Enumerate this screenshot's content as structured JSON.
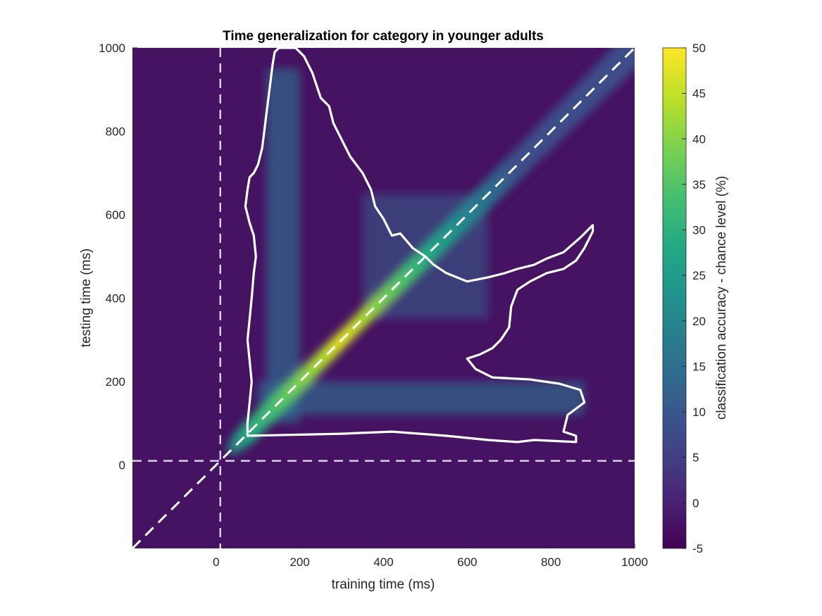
{
  "chart_data": {
    "type": "heatmap",
    "title": "Time generalization for category in younger adults",
    "xlabel": "training time (ms)",
    "ylabel": "testing time (ms)",
    "xlim": [
      -200,
      1000
    ],
    "ylim": [
      -200,
      1000
    ],
    "xticks": [
      0,
      200,
      400,
      600,
      800,
      1000
    ],
    "yticks": [
      0,
      200,
      400,
      600,
      800,
      1000
    ],
    "colorbar": {
      "label": "classification accuracy - chance level (%)",
      "min": -5,
      "max": 50,
      "ticks": [
        -5,
        0,
        5,
        10,
        15,
        20,
        25,
        30,
        35,
        40,
        45,
        50
      ],
      "colormap": "viridis"
    },
    "reference_lines": {
      "stimulus_onset_ms": 10,
      "diagonal": true,
      "style": "dashed"
    },
    "peak": {
      "train_ms": 320,
      "test_ms": 320,
      "value": 48
    },
    "features": [
      {
        "description_level": "diagonal ridge",
        "from_ms": 80,
        "to_ms": 1000,
        "peak_value": 48
      },
      {
        "description_level": "vertical band",
        "train_ms": 160,
        "test_range_ms": [
          100,
          950
        ],
        "value": 14
      },
      {
        "description_level": "horizontal band",
        "test_ms": 160,
        "train_range_ms": [
          100,
          880
        ],
        "value": 14
      },
      {
        "description_level": "plateau",
        "train_range_ms": [
          350,
          650
        ],
        "test_range_ms": [
          350,
          650
        ],
        "value": 12
      }
    ],
    "significance_contour": {
      "color": "#ffffff",
      "polygon_ms": [
        [
          75,
          70
        ],
        [
          300,
          75
        ],
        [
          420,
          80
        ],
        [
          550,
          70
        ],
        [
          650,
          60
        ],
        [
          720,
          55
        ],
        [
          760,
          60
        ],
        [
          800,
          58
        ],
        [
          860,
          55
        ],
        [
          860,
          70
        ],
        [
          830,
          80
        ],
        [
          840,
          120
        ],
        [
          880,
          150
        ],
        [
          870,
          180
        ],
        [
          820,
          195
        ],
        [
          750,
          205
        ],
        [
          660,
          210
        ],
        [
          620,
          230
        ],
        [
          600,
          255
        ],
        [
          630,
          265
        ],
        [
          660,
          280
        ],
        [
          680,
          300
        ],
        [
          700,
          330
        ],
        [
          705,
          380
        ],
        [
          720,
          420
        ],
        [
          750,
          440
        ],
        [
          790,
          460
        ],
        [
          830,
          470
        ],
        [
          860,
          490
        ],
        [
          880,
          520
        ],
        [
          900,
          560
        ],
        [
          900,
          575
        ],
        [
          870,
          545
        ],
        [
          830,
          510
        ],
        [
          790,
          495
        ],
        [
          760,
          480
        ],
        [
          720,
          470
        ],
        [
          690,
          460
        ],
        [
          650,
          450
        ],
        [
          600,
          440
        ],
        [
          550,
          460
        ],
        [
          520,
          480
        ],
        [
          500,
          500
        ],
        [
          470,
          520
        ],
        [
          440,
          555
        ],
        [
          420,
          550
        ],
        [
          400,
          590
        ],
        [
          380,
          620
        ],
        [
          370,
          660
        ],
        [
          350,
          700
        ],
        [
          320,
          740
        ],
        [
          300,
          780
        ],
        [
          280,
          820
        ],
        [
          270,
          860
        ],
        [
          250,
          880
        ],
        [
          230,
          940
        ],
        [
          210,
          980
        ],
        [
          190,
          1000
        ],
        [
          150,
          1000
        ],
        [
          140,
          990
        ],
        [
          135,
          960
        ],
        [
          130,
          920
        ],
        [
          125,
          880
        ],
        [
          120,
          840
        ],
        [
          115,
          800
        ],
        [
          110,
          760
        ],
        [
          100,
          720
        ],
        [
          90,
          700
        ],
        [
          80,
          690
        ],
        [
          75,
          660
        ],
        [
          70,
          620
        ],
        [
          80,
          580
        ],
        [
          90,
          550
        ],
        [
          95,
          500
        ],
        [
          90,
          460
        ],
        [
          85,
          400
        ],
        [
          80,
          350
        ],
        [
          75,
          300
        ],
        [
          80,
          250
        ],
        [
          85,
          200
        ],
        [
          80,
          150
        ],
        [
          75,
          100
        ]
      ]
    }
  }
}
